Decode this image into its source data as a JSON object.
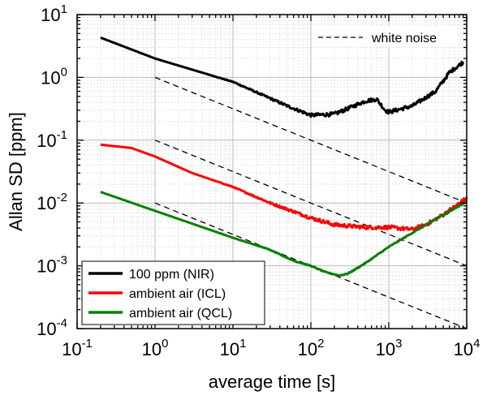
{
  "chart_data": {
    "type": "line",
    "title": "",
    "xlabel": "average time [s]",
    "ylabel": "Allan SD [ppm]",
    "x_scale": "log",
    "y_scale": "log",
    "xlim": [
      0.1,
      10000
    ],
    "ylim": [
      0.0001,
      10
    ],
    "grid": true,
    "x_ticks": [
      {
        "value": 0.1,
        "base": "10",
        "exp": "-1"
      },
      {
        "value": 1,
        "base": "10",
        "exp": "0"
      },
      {
        "value": 10,
        "base": "10",
        "exp": "1"
      },
      {
        "value": 100,
        "base": "10",
        "exp": "2"
      },
      {
        "value": 1000,
        "base": "10",
        "exp": "3"
      },
      {
        "value": 10000,
        "base": "10",
        "exp": "4"
      }
    ],
    "y_ticks": [
      {
        "value": 10,
        "base": "10",
        "exp": "1"
      },
      {
        "value": 1,
        "base": "10",
        "exp": "0"
      },
      {
        "value": 0.1,
        "base": "10",
        "exp": "-1"
      },
      {
        "value": 0.01,
        "base": "10",
        "exp": "-2"
      },
      {
        "value": 0.001,
        "base": "10",
        "exp": "-3"
      },
      {
        "value": 0.0001,
        "base": "10",
        "exp": "-4"
      }
    ],
    "series": [
      {
        "name": "100 ppm (NIR)",
        "color": "#000000",
        "noise": 0.03,
        "points": [
          [
            0.2,
            4.3
          ],
          [
            1,
            2.0
          ],
          [
            10,
            0.85
          ],
          [
            50,
            0.35
          ],
          [
            100,
            0.25
          ],
          [
            200,
            0.26
          ],
          [
            300,
            0.32
          ],
          [
            500,
            0.42
          ],
          [
            700,
            0.45
          ],
          [
            900,
            0.3
          ],
          [
            1000,
            0.28
          ],
          [
            2000,
            0.35
          ],
          [
            4000,
            0.6
          ],
          [
            6000,
            1.2
          ],
          [
            9000,
            1.75
          ]
        ]
      },
      {
        "name": "ambient air (ICL)",
        "color": "#ff0000",
        "noise": 0.03,
        "points": [
          [
            0.2,
            0.085
          ],
          [
            0.5,
            0.075
          ],
          [
            1,
            0.055
          ],
          [
            3,
            0.03
          ],
          [
            10,
            0.018
          ],
          [
            30,
            0.01
          ],
          [
            100,
            0.0058
          ],
          [
            200,
            0.0045
          ],
          [
            500,
            0.0041
          ],
          [
            1000,
            0.0041
          ],
          [
            2000,
            0.0038
          ],
          [
            3000,
            0.0045
          ],
          [
            5000,
            0.0065
          ],
          [
            10000,
            0.012
          ]
        ]
      },
      {
        "name": "ambient air (QCL)",
        "color": "#008000",
        "noise": 0.008,
        "points": [
          [
            0.2,
            0.015
          ],
          [
            1,
            0.0075
          ],
          [
            10,
            0.0028
          ],
          [
            30,
            0.0018
          ],
          [
            60,
            0.0012
          ],
          [
            100,
            0.001
          ],
          [
            150,
            0.0008
          ],
          [
            230,
            0.0007
          ],
          [
            300,
            0.00075
          ],
          [
            500,
            0.0011
          ],
          [
            1000,
            0.002
          ],
          [
            3000,
            0.0045
          ],
          [
            10000,
            0.0105
          ]
        ]
      }
    ],
    "reference_lines": {
      "name": "white noise",
      "style": "dashed",
      "color": "#000000",
      "slope": -0.5,
      "lines": [
        [
          [
            1,
            1.0
          ],
          [
            10000,
            0.01
          ]
        ],
        [
          [
            1,
            0.1
          ],
          [
            10000,
            0.001
          ]
        ],
        [
          [
            1,
            0.01
          ],
          [
            10000,
            0.0001
          ]
        ]
      ]
    },
    "legend": {
      "placement": "bottom-left",
      "entries": [
        "100 ppm (NIR)",
        "ambient air (ICL)",
        "ambient air (QCL)"
      ]
    },
    "annotation": {
      "text": "white noise",
      "placement": "top-right"
    }
  }
}
